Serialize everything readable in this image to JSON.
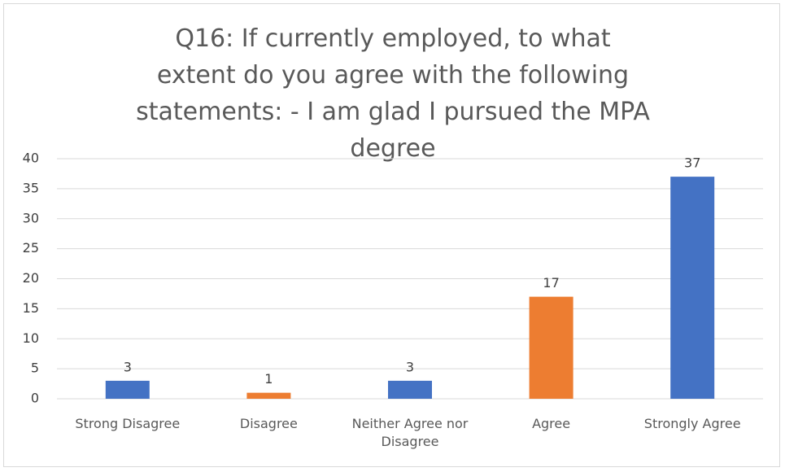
{
  "chart_data": {
    "type": "bar",
    "title": "Q16: If currently employed, to what extent do you agree with the following statements: - I am glad I pursued the MPA degree",
    "categories": [
      "Strong Disagree",
      "Disagree",
      "Neither Agree nor Disagree",
      "Agree",
      "Strongly Agree"
    ],
    "values": [
      3,
      1,
      3,
      17,
      37
    ],
    "colors": [
      "#4472c4",
      "#ed7d31",
      "#4472c4",
      "#ed7d31",
      "#4472c4"
    ],
    "ylim": [
      0,
      40
    ],
    "yticks": [
      0,
      5,
      10,
      15,
      20,
      25,
      30,
      35,
      40
    ],
    "grid": true
  }
}
